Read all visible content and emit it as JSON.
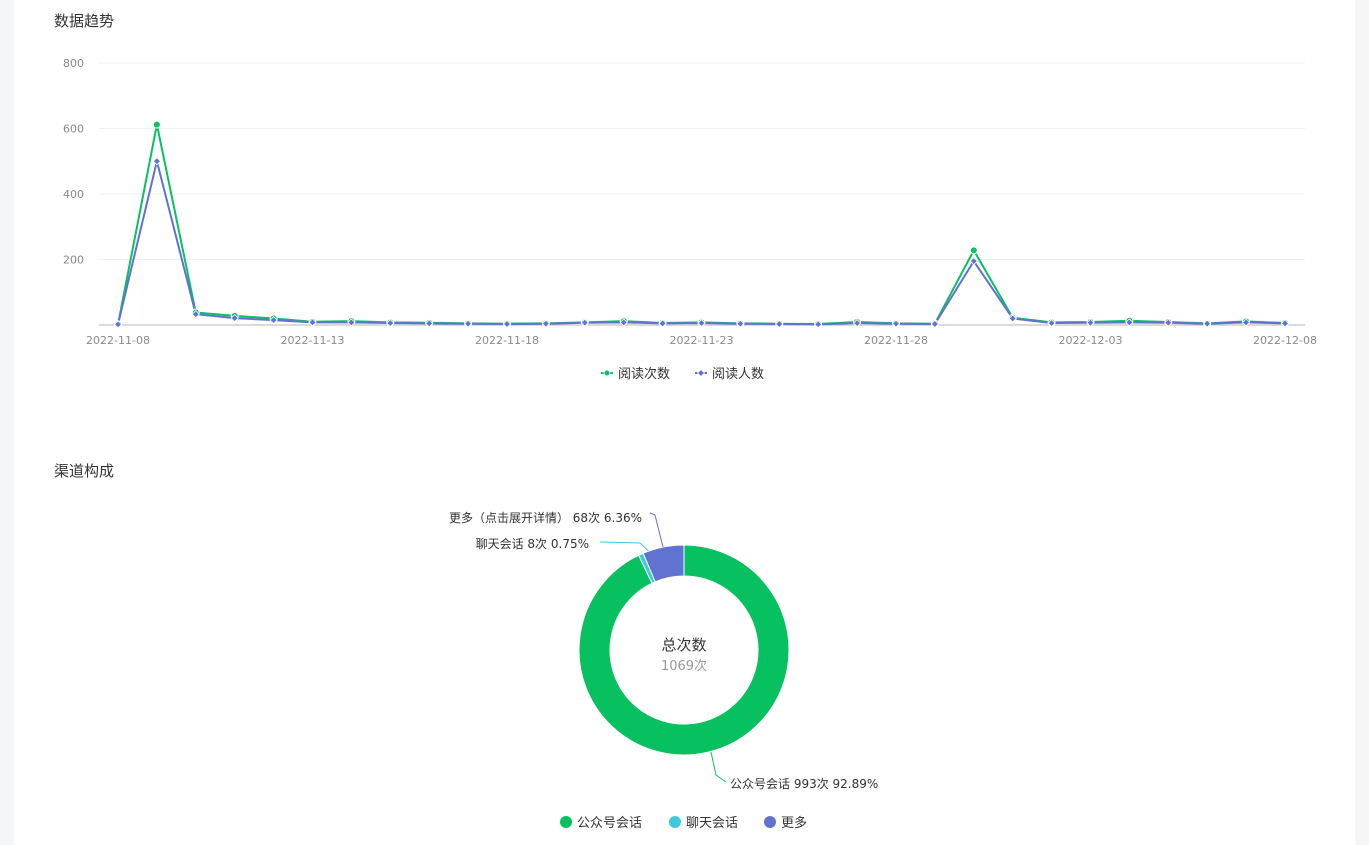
{
  "trend": {
    "title": "数据趋势",
    "legend": [
      {
        "label": "阅读次数",
        "color": "#07c160"
      },
      {
        "label": "阅读人数",
        "color": "#6173d0"
      }
    ]
  },
  "channel": {
    "title": "渠道构成",
    "center_title": "总次数",
    "center_value": "1069次",
    "legend": [
      {
        "label": "公众号会话",
        "color": "#07c160"
      },
      {
        "label": "聊天会话",
        "color": "#3ec9dd"
      },
      {
        "label": "更多",
        "color": "#6173d0"
      }
    ]
  },
  "chart_data": [
    {
      "type": "line",
      "title": "数据趋势",
      "x": [
        "2022-11-08",
        "2022-11-09",
        "2022-11-10",
        "2022-11-11",
        "2022-11-12",
        "2022-11-13",
        "2022-11-14",
        "2022-11-15",
        "2022-11-16",
        "2022-11-17",
        "2022-11-18",
        "2022-11-19",
        "2022-11-20",
        "2022-11-21",
        "2022-11-22",
        "2022-11-23",
        "2022-11-24",
        "2022-11-25",
        "2022-11-26",
        "2022-11-27",
        "2022-11-28",
        "2022-11-29",
        "2022-11-30",
        "2022-12-01",
        "2022-12-02",
        "2022-12-03",
        "2022-12-04",
        "2022-12-05",
        "2022-12-06",
        "2022-12-07",
        "2022-12-08"
      ],
      "x_tick_labels": [
        "2022-11-08",
        "2022-11-13",
        "2022-11-18",
        "2022-11-23",
        "2022-11-28",
        "2022-12-03",
        "2022-12-08"
      ],
      "y_ticks": [
        200,
        400,
        600,
        800
      ],
      "ylim": [
        0,
        800
      ],
      "grid": true,
      "legend_position": "bottom-center",
      "series": [
        {
          "name": "阅读次数",
          "color": "#07c160",
          "marker": "circle",
          "values": [
            2,
            612,
            38,
            28,
            20,
            10,
            12,
            8,
            7,
            5,
            4,
            5,
            8,
            12,
            6,
            8,
            5,
            4,
            3,
            9,
            5,
            4,
            228,
            22,
            8,
            9,
            13,
            9,
            5,
            11,
            6
          ]
        },
        {
          "name": "阅读人数",
          "color": "#6173d0",
          "marker": "diamond",
          "values": [
            2,
            500,
            33,
            21,
            15,
            8,
            8,
            6,
            5,
            4,
            3,
            4,
            7,
            8,
            5,
            6,
            4,
            3,
            2,
            6,
            4,
            3,
            195,
            20,
            6,
            7,
            8,
            7,
            4,
            8,
            5
          ]
        }
      ]
    },
    {
      "type": "pie",
      "title": "渠道构成",
      "donut": true,
      "slices": [
        {
          "name": "公众号会话",
          "label": "公众号会话 993次 92.89%",
          "value": 993,
          "percent": 92.89,
          "color": "#07c160"
        },
        {
          "name": "聊天会话",
          "label": "聊天会话 8次 0.75%",
          "value": 8,
          "percent": 0.75,
          "color": "#3ec9dd"
        },
        {
          "name": "更多",
          "label": "更多（点击展开详情） 68次 6.36%",
          "value": 68,
          "percent": 6.36,
          "color": "#6173d0"
        }
      ],
      "legend_position": "bottom-center"
    }
  ]
}
